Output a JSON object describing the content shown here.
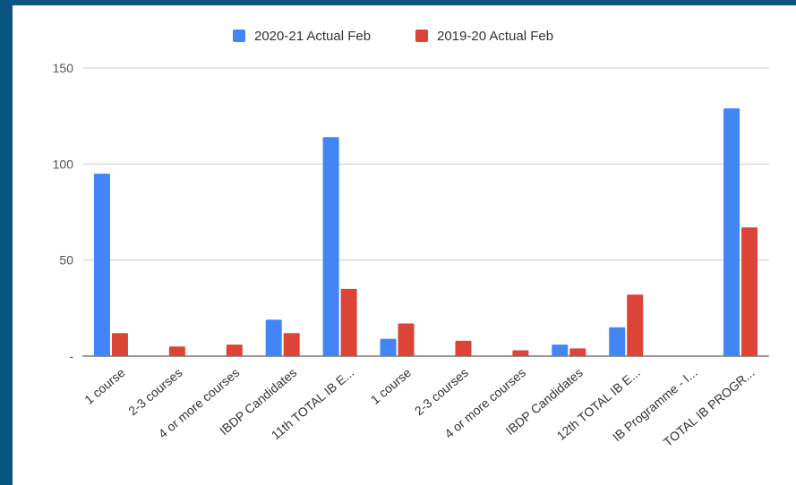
{
  "chart_data": {
    "type": "bar",
    "legend_position": "top",
    "grid": true,
    "ylim": [
      0,
      150
    ],
    "y_ticks": [
      {
        "value": 0,
        "label": "-"
      },
      {
        "value": 50,
        "label": "50"
      },
      {
        "value": 100,
        "label": "100"
      },
      {
        "value": 150,
        "label": "150"
      }
    ],
    "categories": [
      "1 course",
      "2-3 courses",
      "4 or more courses",
      "IBDP Candidates",
      "11th TOTAL IB E...",
      "1 course",
      "2-3 courses",
      "4 or more courses",
      "IBDP Candidates",
      "12th TOTAL IB E...",
      "IB Programme - I...",
      "TOTAL IB PROGR..."
    ],
    "series": [
      {
        "name": "2020-21 Actual Feb",
        "color": "#4285f4",
        "values": [
          95,
          0,
          0,
          19,
          114,
          9,
          0,
          0,
          6,
          15,
          0,
          129
        ]
      },
      {
        "name": "2019-20 Actual Feb",
        "color": "#db4437",
        "values": [
          12,
          5,
          6,
          12,
          35,
          17,
          8,
          3,
          4,
          32,
          0,
          67
        ]
      }
    ]
  }
}
